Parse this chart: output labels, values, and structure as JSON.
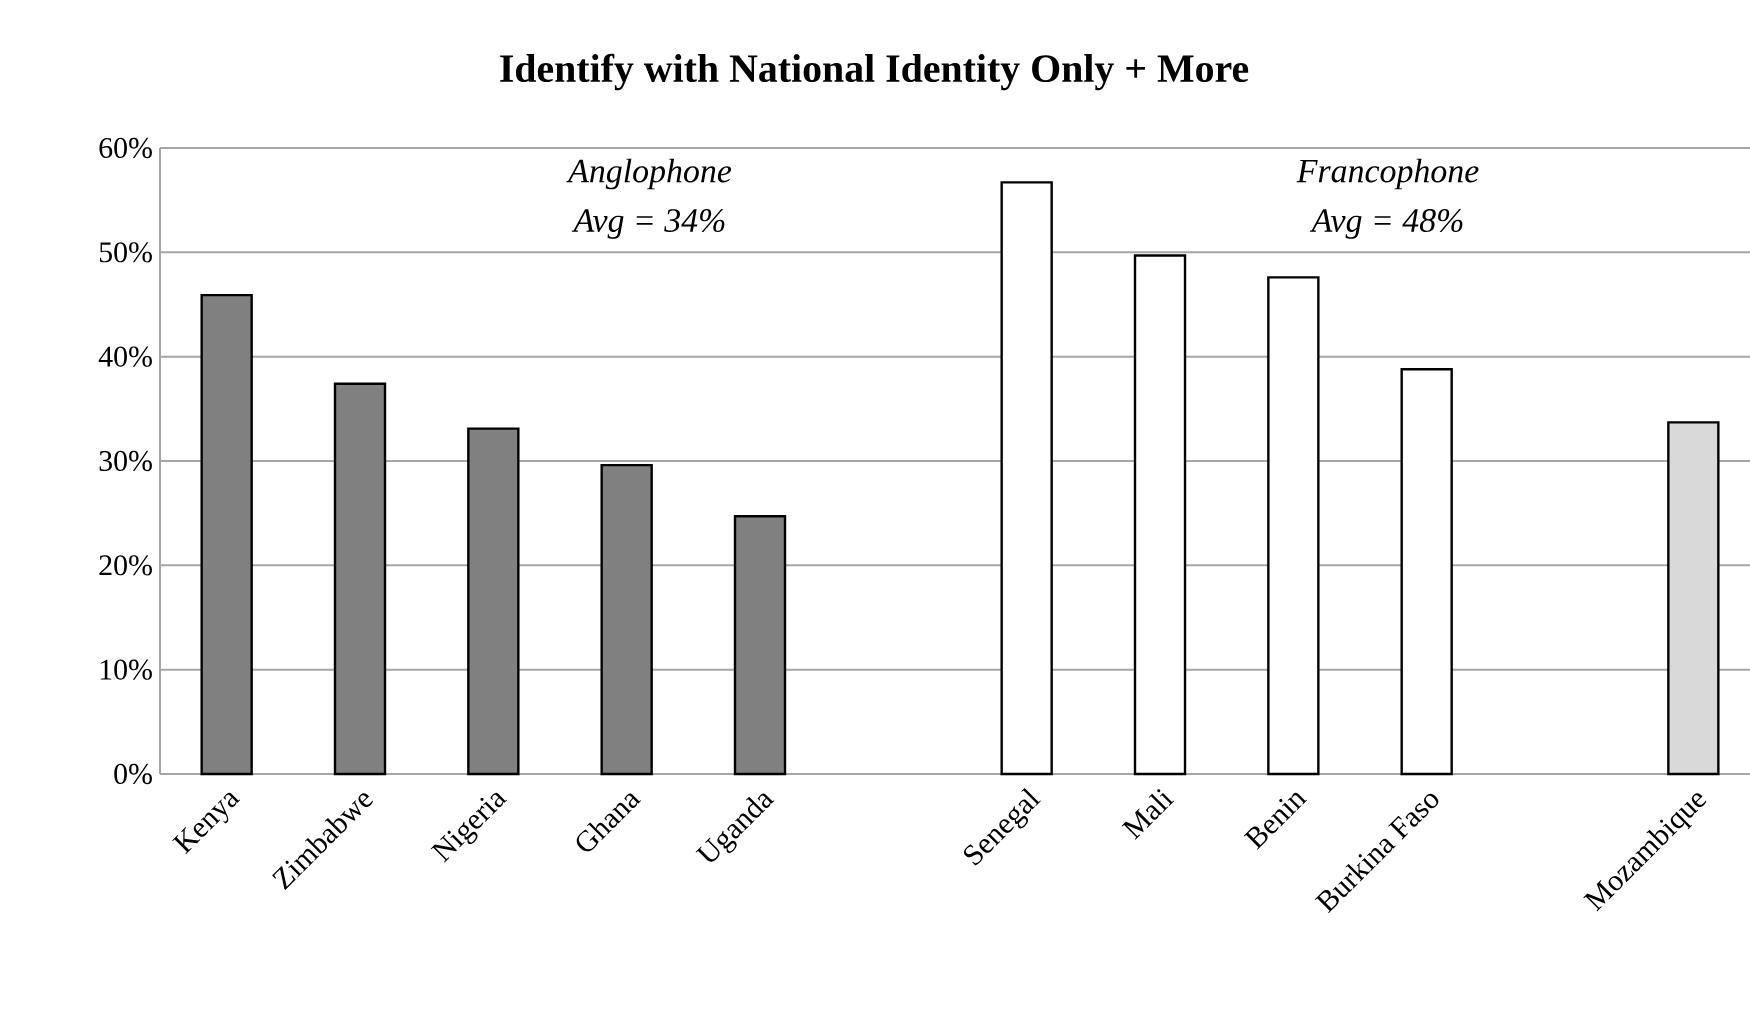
{
  "chart_data": {
    "type": "bar",
    "title": "Identify with National Identity Only + More",
    "categories": [
      "Kenya",
      "Zimbabwe",
      "Nigeria",
      "Ghana",
      "Uganda",
      null,
      "Senegal",
      "Mali",
      "Benin",
      "Burkina Faso",
      null,
      "Mozambique"
    ],
    "values": [
      45.9,
      37.4,
      33.1,
      29.6,
      24.7,
      null,
      56.7,
      49.7,
      47.6,
      38.8,
      null,
      33.7
    ],
    "colors": [
      "#808080",
      "#808080",
      "#808080",
      "#808080",
      "#808080",
      "#ffffff",
      "#ffffff",
      "#ffffff",
      "#ffffff",
      "#ffffff",
      "#ffffff",
      "#d9d9d9"
    ],
    "ylim": [
      0,
      60
    ],
    "yticks": [
      {
        "value": 0,
        "label": "0%"
      },
      {
        "value": 10,
        "label": "10%"
      },
      {
        "value": 20,
        "label": "20%"
      },
      {
        "value": 30,
        "label": "30%"
      },
      {
        "value": 40,
        "label": "40%"
      },
      {
        "value": 50,
        "label": "50%"
      },
      {
        "value": 60,
        "label": "60%"
      }
    ],
    "grid": "y",
    "annotations": [
      "*Anglophone*",
      "*Avg = 34%*",
      "*Francophone*",
      "*Avg = 48%*"
    ]
  }
}
